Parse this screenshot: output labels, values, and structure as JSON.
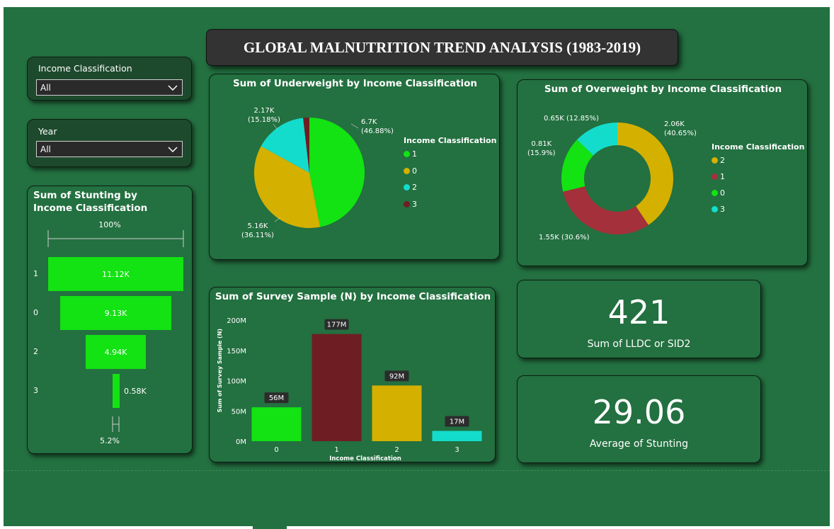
{
  "page_title": "GLOBAL MALNUTRITION TREND ANALYSIS (1983-2019)",
  "slicers": [
    {
      "label": "Income Classification",
      "value": "All"
    },
    {
      "label": "Year",
      "value": "All"
    }
  ],
  "colors": {
    "background": "#237040",
    "green": "#13e213",
    "yellow": "#d4b000",
    "cyan": "#14dccc",
    "maroon": "#6e1e22",
    "red": "#a3303a"
  },
  "funnel": {
    "title": "Sum of Stunting by Income Classification",
    "top_pct": "100%",
    "bottom_pct": "5.2%",
    "categories": [
      "1",
      "0",
      "2",
      "3"
    ],
    "value_labels": [
      "11.12K",
      "9.13K",
      "4.94K",
      "0.58K"
    ]
  },
  "underweight": {
    "title": "Sum of Underweight by Income Classification",
    "labels": [
      {
        "value": "6.7K",
        "pct": "(46.88%)"
      },
      {
        "value": "5.16K",
        "pct": "(36.11%)"
      },
      {
        "value": "2.17K",
        "pct": "(15.18%)"
      }
    ],
    "legend_title": "Income Classification",
    "legend": [
      {
        "name": "1",
        "color": "#13e213"
      },
      {
        "name": "0",
        "color": "#d4b000"
      },
      {
        "name": "2",
        "color": "#14dccc"
      },
      {
        "name": "3",
        "color": "#6e1e22"
      }
    ]
  },
  "overweight": {
    "title": "Sum of Overweight by Income Classification",
    "labels": [
      {
        "value": "2.06K",
        "pct": "(40.65%)"
      },
      {
        "value": "1.55K (30.6%)"
      },
      {
        "value": "0.81K",
        "pct": "(15.9%)"
      },
      {
        "value": "0.65K (12.85%)"
      }
    ],
    "legend_title": "Income Classification",
    "legend": [
      {
        "name": "2",
        "color": "#d4b000"
      },
      {
        "name": "1",
        "color": "#a3303a"
      },
      {
        "name": "0",
        "color": "#13e213"
      },
      {
        "name": "3",
        "color": "#14dccc"
      }
    ]
  },
  "kpis": [
    {
      "value": "421",
      "label": "Sum of LLDC or SID2"
    },
    {
      "value": "29.06",
      "label": "Average of Stunting"
    }
  ],
  "chart_data": [
    {
      "type": "funnel",
      "title": "Sum of Stunting by Income Classification",
      "categories": [
        "1",
        "0",
        "2",
        "3"
      ],
      "values": [
        11120,
        9130,
        4940,
        580
      ],
      "value_labels": [
        "11.12K",
        "9.13K",
        "4.94K",
        "0.58K"
      ]
    },
    {
      "type": "pie",
      "title": "Sum of Underweight by Income Classification",
      "categories": [
        "1",
        "0",
        "2",
        "3"
      ],
      "values": [
        6700,
        5160,
        2170,
        260
      ],
      "percentages": [
        46.88,
        36.11,
        15.18,
        1.83
      ],
      "legend": "right"
    },
    {
      "type": "pie",
      "subtype": "donut",
      "title": "Sum of Overweight by Income Classification",
      "categories": [
        "2",
        "1",
        "0",
        "3"
      ],
      "values": [
        2060,
        1550,
        810,
        650
      ],
      "percentages": [
        40.65,
        30.6,
        15.9,
        12.85
      ],
      "legend": "right"
    },
    {
      "type": "bar",
      "title": "Sum of Survey Sample (N) by Income Classification",
      "categories": [
        "0",
        "1",
        "2",
        "3"
      ],
      "values": [
        56,
        177,
        92,
        17
      ],
      "value_labels": [
        "56M",
        "177M",
        "92M",
        "17M"
      ],
      "colors": [
        "#13e213",
        "#6e1e22",
        "#d4b000",
        "#14dccc"
      ],
      "xlabel": "Income Classification",
      "ylabel": "Sum of Survey Sample (N)",
      "ylim": [
        0,
        200
      ],
      "yticks": [
        "0M",
        "50M",
        "100M",
        "150M",
        "200M"
      ]
    }
  ]
}
